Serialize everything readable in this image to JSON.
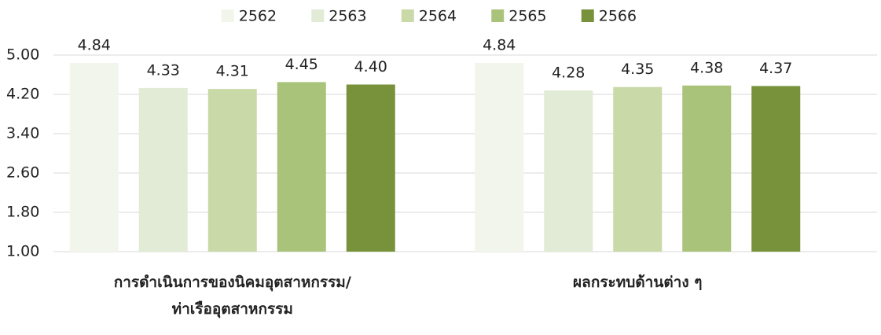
{
  "chart_data": {
    "type": "bar",
    "categories": [
      "การดำเนินการของนิคมอุตสาหกรรม/\nท่าเรืออุตสาหกรรม",
      "ผลกระทบด้านต่าง ๆ"
    ],
    "series": [
      {
        "name": "2562",
        "color": "#f2f5ec",
        "values": [
          4.84,
          4.84
        ],
        "value_labels": [
          "4.84",
          "4.84"
        ]
      },
      {
        "name": "2563",
        "color": "#e2ebd5",
        "values": [
          4.33,
          4.28
        ],
        "value_labels": [
          "4.33",
          "4.28"
        ]
      },
      {
        "name": "2564",
        "color": "#c9d9a8",
        "values": [
          4.31,
          4.35
        ],
        "value_labels": [
          "4.31",
          "4.35"
        ]
      },
      {
        "name": "2565",
        "color": "#a9c47a",
        "values": [
          4.45,
          4.38
        ],
        "value_labels": [
          "4.45",
          "4.38"
        ]
      },
      {
        "name": "2566",
        "color": "#77923a",
        "values": [
          4.4,
          4.37
        ],
        "value_labels": [
          "4.40",
          "4.37"
        ]
      }
    ],
    "ylim": [
      1,
      5
    ],
    "yticks": [
      {
        "value": 1,
        "label": "1.00"
      },
      {
        "value": 1.8,
        "label": "1.80"
      },
      {
        "value": 2.6,
        "label": "2.60"
      },
      {
        "value": 3.4,
        "label": "3.40"
      },
      {
        "value": 4.2,
        "label": "4.20"
      },
      {
        "value": 5,
        "label": "5.00"
      }
    ],
    "grid": true,
    "legend": "top"
  }
}
